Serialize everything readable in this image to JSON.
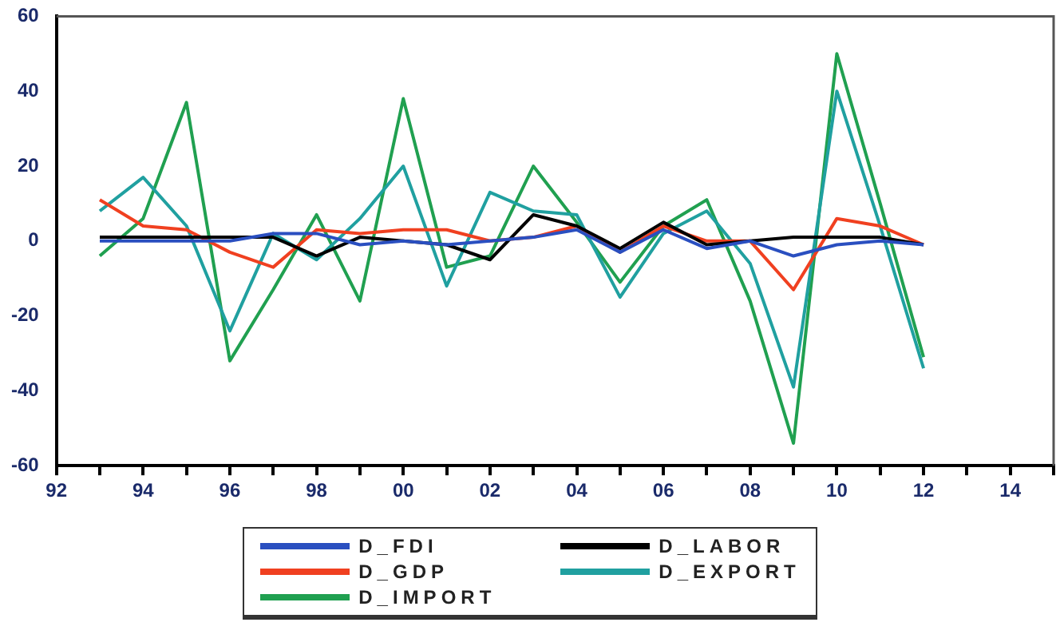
{
  "chart_data": {
    "type": "line",
    "x": [
      1993,
      1994,
      1995,
      1996,
      1997,
      1998,
      1999,
      2000,
      2001,
      2002,
      2003,
      2004,
      2005,
      2006,
      2007,
      2008,
      2009,
      2010,
      2011,
      2012
    ],
    "series": [
      {
        "name": "D_FDI",
        "color": "#2a4fc0",
        "values": [
          0,
          0,
          0,
          0,
          2,
          2,
          -1,
          0,
          -1,
          0,
          1,
          3,
          -3,
          3,
          -2,
          0,
          -4,
          -1,
          0,
          -1
        ]
      },
      {
        "name": "D_LABOR",
        "color": "#000000",
        "values": [
          1,
          1,
          1,
          1,
          1,
          -4,
          1,
          0,
          -1,
          -5,
          7,
          4,
          -2,
          5,
          -1,
          0,
          1,
          1,
          1,
          -1
        ]
      },
      {
        "name": "D_GDP",
        "color": "#f04020",
        "values": [
          11,
          4,
          3,
          -3,
          -7,
          3,
          2,
          3,
          3,
          0,
          1,
          4,
          -3,
          4,
          0,
          0,
          -13,
          6,
          4,
          -1
        ]
      },
      {
        "name": "D_EXPORT",
        "color": "#20a0a0",
        "values": [
          8,
          17,
          4,
          -24,
          2,
          -5,
          6,
          20,
          -12,
          13,
          8,
          7,
          -15,
          2,
          8,
          -6,
          -39,
          40,
          4,
          -34
        ]
      },
      {
        "name": "D_IMPORT",
        "color": "#20a050",
        "values": [
          -4,
          6,
          37,
          -32,
          -13,
          7,
          -16,
          38,
          -7,
          -4,
          20,
          5,
          -11,
          4,
          11,
          -16,
          -54,
          50,
          10,
          -31
        ]
      }
    ],
    "xlim": [
      1992,
      2015
    ],
    "xticks": [
      {
        "value": 1992,
        "label": "92"
      },
      {
        "value": 1993,
        "label": null
      },
      {
        "value": 1994,
        "label": "94"
      },
      {
        "value": 1995,
        "label": null
      },
      {
        "value": 1996,
        "label": "96"
      },
      {
        "value": 1997,
        "label": null
      },
      {
        "value": 1998,
        "label": "98"
      },
      {
        "value": 1999,
        "label": null
      },
      {
        "value": 2000,
        "label": "00"
      },
      {
        "value": 2001,
        "label": null
      },
      {
        "value": 2002,
        "label": "02"
      },
      {
        "value": 2003,
        "label": null
      },
      {
        "value": 2004,
        "label": "04"
      },
      {
        "value": 2005,
        "label": null
      },
      {
        "value": 2006,
        "label": "06"
      },
      {
        "value": 2007,
        "label": null
      },
      {
        "value": 2008,
        "label": "08"
      },
      {
        "value": 2009,
        "label": null
      },
      {
        "value": 2010,
        "label": "10"
      },
      {
        "value": 2011,
        "label": null
      },
      {
        "value": 2012,
        "label": "12"
      },
      {
        "value": 2013,
        "label": null
      },
      {
        "value": 2014,
        "label": "14"
      },
      {
        "value": 2015,
        "label": null
      }
    ],
    "ylim": [
      -60,
      60
    ],
    "yticks": [
      -60,
      -40,
      -20,
      0,
      20,
      40,
      60
    ],
    "grid": false,
    "legend": "bottom",
    "marker": "none",
    "line_style": "solid"
  }
}
